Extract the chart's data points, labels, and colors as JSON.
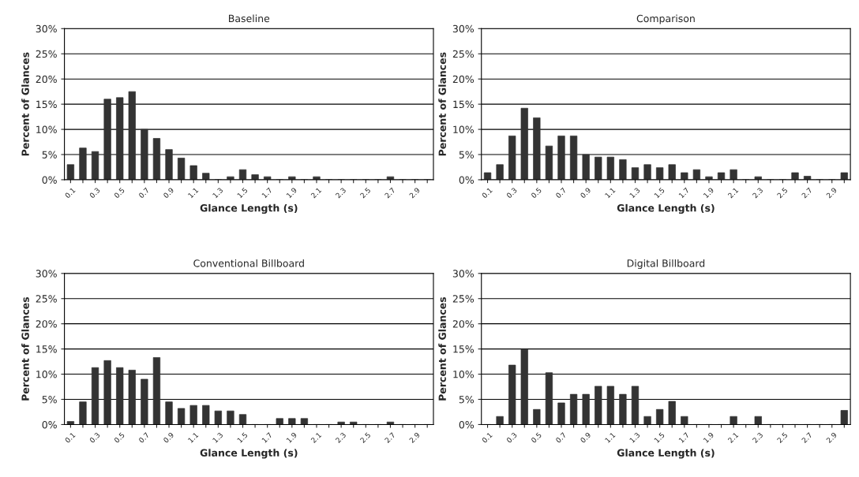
{
  "chart_data": [
    {
      "type": "bar",
      "title": "Baseline",
      "xlabel": "Glance Length (s)",
      "ylabel": "Percent of Glances",
      "categories": [
        "0.1",
        null,
        "0.3",
        null,
        "0.5",
        null,
        "0.7",
        null,
        "0.9",
        null,
        "1.1",
        null,
        "1.3",
        null,
        "1.5",
        null,
        "1.7",
        null,
        "1.9",
        null,
        "2.1",
        null,
        "2.3",
        null,
        "2.5",
        null,
        "2.7",
        null,
        "2.9",
        null
      ],
      "values": [
        3,
        6.3,
        5.6,
        16,
        16.3,
        17.5,
        10,
        8.2,
        6,
        4.3,
        2.8,
        1.3,
        0,
        0.6,
        2,
        1,
        0.6,
        0,
        0.6,
        0,
        0.6,
        0,
        0,
        0,
        0,
        0,
        0.6,
        0,
        0,
        0
      ],
      "color": "#333333",
      "ylim": [
        0,
        30
      ],
      "yticks": [
        {
          "value": 0,
          "label": "0%"
        },
        {
          "value": 5,
          "label": "5%"
        },
        {
          "value": 10,
          "label": "10%"
        },
        {
          "value": 15,
          "label": "15%"
        },
        {
          "value": 20,
          "label": "20%"
        },
        {
          "value": 25,
          "label": "25%"
        },
        {
          "value": 30,
          "label": "30%"
        }
      ],
      "grid": "y"
    },
    {
      "type": "bar",
      "title": "Comparison",
      "xlabel": "Glance Length (s)",
      "ylabel": "Percent of Glances",
      "categories": [
        "0.1",
        null,
        "0.3",
        null,
        "0.5",
        null,
        "0.7",
        null,
        "0.9",
        null,
        "1.1",
        null,
        "1.3",
        null,
        "1.5",
        null,
        "1.7",
        null,
        "1.9",
        null,
        "2.1",
        null,
        "2.3",
        null,
        "2.5",
        null,
        "2.7",
        null,
        "2.9",
        null
      ],
      "values": [
        1.4,
        3,
        8.7,
        14.2,
        12.3,
        6.7,
        8.7,
        8.7,
        5,
        4.5,
        4.5,
        4,
        2.4,
        3,
        2.4,
        3,
        1.4,
        2,
        0.6,
        1.4,
        2,
        0,
        0.6,
        0,
        0,
        1.4,
        0.7,
        0,
        0,
        1.4
      ],
      "color": "#333333",
      "ylim": [
        0,
        30
      ],
      "yticks": [
        {
          "value": 0,
          "label": "0%"
        },
        {
          "value": 5,
          "label": "5%"
        },
        {
          "value": 10,
          "label": "10%"
        },
        {
          "value": 15,
          "label": "15%"
        },
        {
          "value": 20,
          "label": "20%"
        },
        {
          "value": 25,
          "label": "25%"
        },
        {
          "value": 30,
          "label": "30%"
        }
      ],
      "grid": "y"
    },
    {
      "type": "bar",
      "title": "Conventional Billboard",
      "xlabel": "Glance Length (s)",
      "ylabel": "Percent of Glances",
      "categories": [
        "0.1",
        null,
        "0.3",
        null,
        "0.5",
        null,
        "0.7",
        null,
        "0.9",
        null,
        "1.1",
        null,
        "1.3",
        null,
        "1.5",
        null,
        "1.7",
        null,
        "1.9",
        null,
        "2.1",
        null,
        "2.3",
        null,
        "2.5",
        null,
        "2.7",
        null,
        "2.9",
        null
      ],
      "values": [
        0.6,
        4.5,
        11.3,
        12.7,
        11.3,
        10.8,
        9,
        13.3,
        4.5,
        3.2,
        3.8,
        3.8,
        2.7,
        2.7,
        2,
        0,
        0,
        1.2,
        1.2,
        1.2,
        0,
        0,
        0.5,
        0.5,
        0,
        0,
        0.5,
        0,
        0,
        0
      ],
      "color": "#333333",
      "ylim": [
        0,
        30
      ],
      "yticks": [
        {
          "value": 0,
          "label": "0%"
        },
        {
          "value": 5,
          "label": "5%"
        },
        {
          "value": 10,
          "label": "10%"
        },
        {
          "value": 15,
          "label": "15%"
        },
        {
          "value": 20,
          "label": "20%"
        },
        {
          "value": 25,
          "label": "25%"
        },
        {
          "value": 30,
          "label": "30%"
        }
      ],
      "grid": "y"
    },
    {
      "type": "bar",
      "title": "Digital Billboard",
      "xlabel": "Glance Length (s)",
      "ylabel": "Percent of Glances",
      "categories": [
        "0.1",
        null,
        "0.3",
        null,
        "0.5",
        null,
        "0.7",
        null,
        "0.9",
        null,
        "1.1",
        null,
        "1.3",
        null,
        "1.5",
        null,
        "1.7",
        null,
        "1.9",
        null,
        "2.1",
        null,
        "2.3",
        null,
        "2.5",
        null,
        "2.7",
        null,
        "2.9",
        null
      ],
      "values": [
        0,
        1.6,
        11.8,
        14.9,
        3,
        10.3,
        4.3,
        6,
        6,
        7.6,
        7.6,
        6,
        7.6,
        1.6,
        3,
        4.6,
        1.6,
        0,
        0,
        0,
        1.6,
        0,
        1.6,
        0,
        0,
        0,
        0,
        0,
        0,
        2.8
      ],
      "color": "#333333",
      "ylim": [
        0,
        30
      ],
      "yticks": [
        {
          "value": 0,
          "label": "0%"
        },
        {
          "value": 5,
          "label": "5%"
        },
        {
          "value": 10,
          "label": "10%"
        },
        {
          "value": 15,
          "label": "15%"
        },
        {
          "value": 20,
          "label": "20%"
        },
        {
          "value": 25,
          "label": "25%"
        },
        {
          "value": 30,
          "label": "30%"
        }
      ],
      "grid": "y"
    }
  ]
}
